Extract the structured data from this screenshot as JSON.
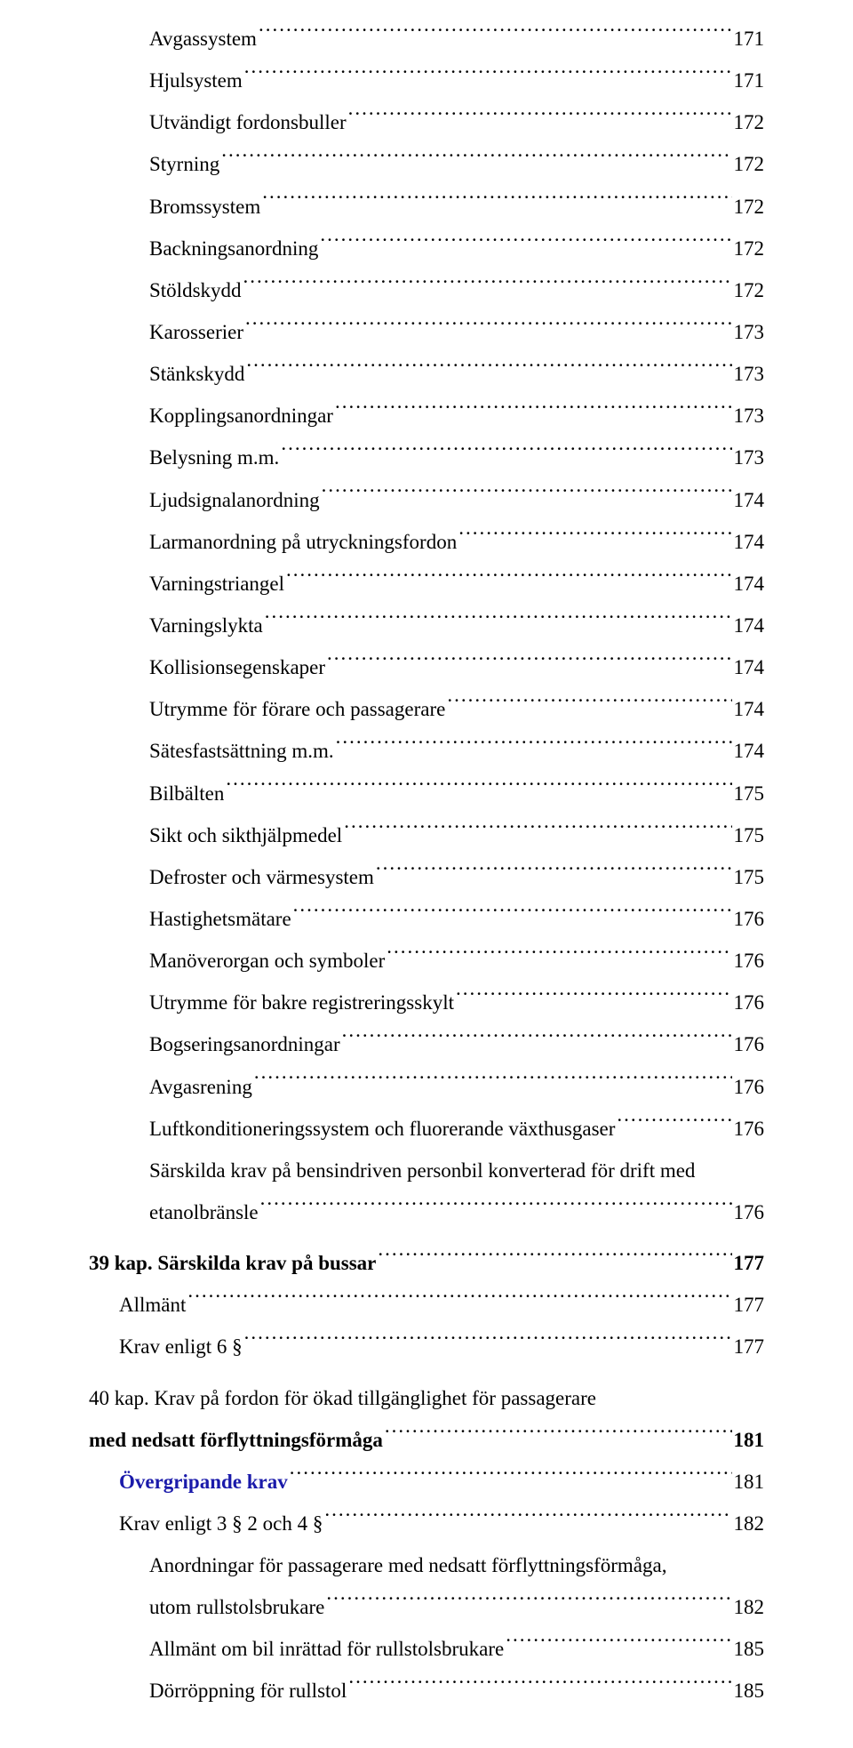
{
  "toc": {
    "items": [
      {
        "label": "Avgassystem",
        "page": "171",
        "indent": 2,
        "bold": false
      },
      {
        "label": "Hjulsystem",
        "page": "171",
        "indent": 2,
        "bold": false
      },
      {
        "label": "Utvändigt fordonsbuller",
        "page": "172",
        "indent": 2,
        "bold": false
      },
      {
        "label": "Styrning",
        "page": "172",
        "indent": 2,
        "bold": false
      },
      {
        "label": "Bromssystem",
        "page": "172",
        "indent": 2,
        "bold": false
      },
      {
        "label": "Backningsanordning",
        "page": "172",
        "indent": 2,
        "bold": false
      },
      {
        "label": "Stöldskydd",
        "page": "172",
        "indent": 2,
        "bold": false
      },
      {
        "label": "Karosserier",
        "page": "173",
        "indent": 2,
        "bold": false
      },
      {
        "label": "Stänkskydd",
        "page": "173",
        "indent": 2,
        "bold": false
      },
      {
        "label": "Kopplingsanordningar",
        "page": "173",
        "indent": 2,
        "bold": false
      },
      {
        "label": "Belysning m.m.",
        "page": "173",
        "indent": 2,
        "bold": false
      },
      {
        "label": "Ljudsignalanordning",
        "page": "174",
        "indent": 2,
        "bold": false
      },
      {
        "label": "Larmanordning på utryckningsfordon",
        "page": "174",
        "indent": 2,
        "bold": false
      },
      {
        "label": "Varningstriangel",
        "page": "174",
        "indent": 2,
        "bold": false
      },
      {
        "label": "Varningslykta",
        "page": "174",
        "indent": 2,
        "bold": false
      },
      {
        "label": "Kollisionsegenskaper",
        "page": "174",
        "indent": 2,
        "bold": false
      },
      {
        "label": "Utrymme för förare och passagerare",
        "page": "174",
        "indent": 2,
        "bold": false
      },
      {
        "label": "Sätesfastsättning m.m.",
        "page": "174",
        "indent": 2,
        "bold": false
      },
      {
        "label": "Bilbälten",
        "page": "175",
        "indent": 2,
        "bold": false
      },
      {
        "label": "Sikt och sikthjälpmedel",
        "page": "175",
        "indent": 2,
        "bold": false
      },
      {
        "label": "Defroster och värmesystem",
        "page": "175",
        "indent": 2,
        "bold": false
      },
      {
        "label": "Hastighetsmätare",
        "page": "176",
        "indent": 2,
        "bold": false
      },
      {
        "label": "Manöverorgan och symboler",
        "page": "176",
        "indent": 2,
        "bold": false
      },
      {
        "label": "Utrymme för bakre registreringsskylt",
        "page": "176",
        "indent": 2,
        "bold": false
      },
      {
        "label": "Bogseringsanordningar",
        "page": "176",
        "indent": 2,
        "bold": false
      },
      {
        "label": "Avgasrening",
        "page": "176",
        "indent": 2,
        "bold": false
      },
      {
        "label": "Luftkonditioneringssystem och fluorerande växthusgaser",
        "page": "176",
        "indent": 2,
        "bold": false
      },
      {
        "label_line1": "Särskilda krav på bensindriven personbil konverterad för drift med",
        "label_line2": "etanolbränsle",
        "page": "176",
        "indent": 2,
        "bold": false,
        "multiline": true
      },
      {
        "label": "39 kap. Särskilda krav på bussar",
        "page": "177",
        "indent": 0,
        "bold": true,
        "gap": true
      },
      {
        "label": "Allmänt",
        "page": "177",
        "indent": 1,
        "bold": false
      },
      {
        "label": "Krav enligt 6 §",
        "page": "177",
        "indent": 1,
        "bold": false
      },
      {
        "label_line1": "40 kap. Krav på fordon för ökad tillgänglighet för passagerare",
        "label_line2": "med nedsatt förflyttningsförmåga",
        "page": "181",
        "indent": 0,
        "bold": true,
        "multiline": true,
        "gap": true
      },
      {
        "label": "Övergripande krav",
        "page": "181",
        "indent": 1,
        "bold": false,
        "blue": true
      },
      {
        "label": "Krav enligt 3 § 2 och 4 §",
        "page": "182",
        "indent": 1,
        "bold": false
      },
      {
        "label_line1": "Anordningar för passagerare med nedsatt förflyttningsförmåga,",
        "label_line2": "utom rullstolsbrukare",
        "page": "182",
        "indent": 2,
        "bold": false,
        "multiline": true
      },
      {
        "label": "Allmänt om bil inrättad för rullstolsbrukare",
        "page": "185",
        "indent": 2,
        "bold": false
      },
      {
        "label": "Dörröppning för rullstol",
        "page": "185",
        "indent": 2,
        "bold": false
      }
    ]
  }
}
